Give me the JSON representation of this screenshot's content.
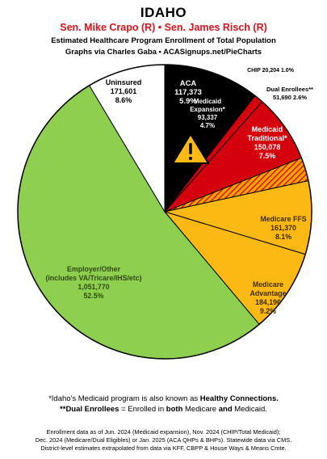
{
  "header": {
    "state": "IDAHO",
    "senators": "Sen. Mike Crapo (R) • Sen. James Risch (R)",
    "subtitle_line1": "Estimated Healthcare Program Enrollment of Total Population",
    "subtitle_line2": "Graphs via Charles Gaba  •  ACASignups.net/PieCharts"
  },
  "chart_data": {
    "type": "pie",
    "title": "IDAHO",
    "slices": [
      {
        "key": "aca",
        "label": "ACA",
        "value": 117373,
        "value_text": "117,373",
        "pct_text": "5.9%",
        "color": "#000000",
        "text_color": "#ffffff"
      },
      {
        "key": "mexp",
        "label": "Medicaid Expansion*",
        "value": 93337,
        "value_text": "93,337",
        "pct_text": "4.7%",
        "color": "#000000",
        "text_color": "#ffffff"
      },
      {
        "key": "chip",
        "label": "CHIP",
        "value": 20204,
        "value_text": "20,204",
        "pct_text": "1.0%",
        "color": "#d4000d",
        "text_color": "#000000"
      },
      {
        "key": "mtrad",
        "label": "Medicaid Traditional*",
        "value": 150078,
        "value_text": "150,078",
        "pct_text": "7.5%",
        "color": "#d4000d",
        "text_color": "#ffffff"
      },
      {
        "key": "dual",
        "label": "Dual Enrollees**",
        "value": 51690,
        "value_text": "51,690",
        "pct_text": "2.6%",
        "color": "#f5a300",
        "text_color": "#000000",
        "hatched": true
      },
      {
        "key": "mffs",
        "label": "Medicare FFS",
        "value": 161370,
        "value_text": "161,370",
        "pct_text": "8.1%",
        "color": "#fdb913",
        "text_color": "#3a2a00"
      },
      {
        "key": "madv",
        "label": "Medicare Advantage",
        "value": 184196,
        "value_text": "184,196",
        "pct_text": "9.2%",
        "color": "#fdb913",
        "text_color": "#3a2a00"
      },
      {
        "key": "emp",
        "label": "Employer/Other (includes VA/Tricare/IHS/etc)",
        "value": 1051770,
        "value_text": "1,051,770",
        "pct_text": "52.5%",
        "color": "#8fcf4f",
        "text_color": "#2f4a10"
      },
      {
        "key": "unins",
        "label": "Uninsured",
        "value": 171601,
        "value_text": "171,601",
        "pct_text": "8.6%",
        "color": "#ffffff",
        "text_color": "#000000"
      }
    ],
    "label_text": {
      "aca": [
        "ACA",
        "117,373",
        "5.9%"
      ],
      "mexp": [
        "Medicaid",
        "Expansion*",
        "93,337",
        "4.7%"
      ],
      "chip": [
        "CHIP 20,204 1.0%"
      ],
      "mtrad": [
        "Medicaid",
        "Traditional*",
        "150,078",
        "7.5%"
      ],
      "dual": [
        "Dual Enrollees**",
        "51,690 2.6%"
      ],
      "mffs": [
        "Medicare FFS",
        "161,370",
        "8.1%"
      ],
      "madv": [
        "Medicare",
        "Advantage",
        "184,196",
        "9.2%"
      ],
      "emp": [
        "Employer/Other",
        "(includes VA/Tricare/IHS/etc)",
        "1,051,770",
        "52.5%"
      ],
      "unins": [
        "Uninsured",
        "171,601",
        "8.6%"
      ]
    },
    "warning_icon": "warning-triangle-icon"
  },
  "notes": {
    "line1_pre": "*Idaho's Medicaid program is also known as ",
    "line1_bold": "Healthy Connections.",
    "line2_bold1": "**Dual Enrollees",
    "line2_mid": " = Enrolled in ",
    "line2_bold2": "both",
    "line2_mid2": " Medicare ",
    "line2_bold3": "and",
    "line2_end": " Medicaid."
  },
  "footer": {
    "line1": "Enrollment data as of Jun. 2024 (Medicaid expansion), Nov. 2024 (CHIP/Total Medicaid);",
    "line2": "Dec. 2024 (Medicare/Dual Eligibles) or Jan. 2025 (ACA QHPs & BHPs). Statewide data via CMS.",
    "line3": "District-level estimates extrapolated from data via KFF, CBPP & House Ways & Means Cmte."
  }
}
